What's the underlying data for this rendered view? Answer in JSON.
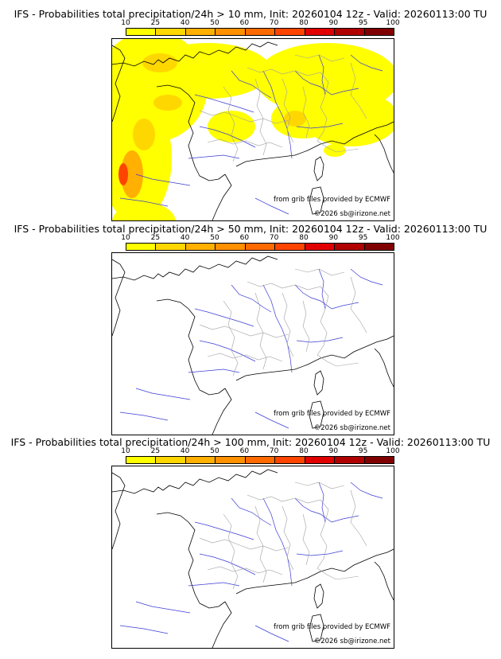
{
  "panels": [
    {
      "title": "IFS - Probabilities total precipitation/24h > 10 mm, Init: 20260104 12z - Valid: 20260113:00 TU",
      "threshold_mm": 10,
      "has_precip_shading": true
    },
    {
      "title": "IFS - Probabilities total precipitation/24h > 50 mm, Init: 20260104 12z - Valid: 20260113:00 TU",
      "threshold_mm": 50,
      "has_precip_shading": false
    },
    {
      "title": "IFS - Probabilities total precipitation/24h > 100 mm, Init: 20260104 12z - Valid: 20260113:00 TU",
      "threshold_mm": 100,
      "has_precip_shading": false
    }
  ],
  "colorbar": {
    "ticks": [
      "10",
      "25",
      "40",
      "50",
      "60",
      "70",
      "80",
      "90",
      "95",
      "100"
    ],
    "colors": [
      "#ffff00",
      "#ffd700",
      "#ffb000",
      "#ff9000",
      "#ff6a00",
      "#ff4400",
      "#e00000",
      "#b00000",
      "#800000"
    ]
  },
  "credits": {
    "source": "from grib files provided by ECMWF",
    "copyright": "©2026 sb@irizone.net"
  },
  "colors": {
    "rivers": "#3b3bd6",
    "borders": "#a0a0a0",
    "coast": "#000000"
  }
}
